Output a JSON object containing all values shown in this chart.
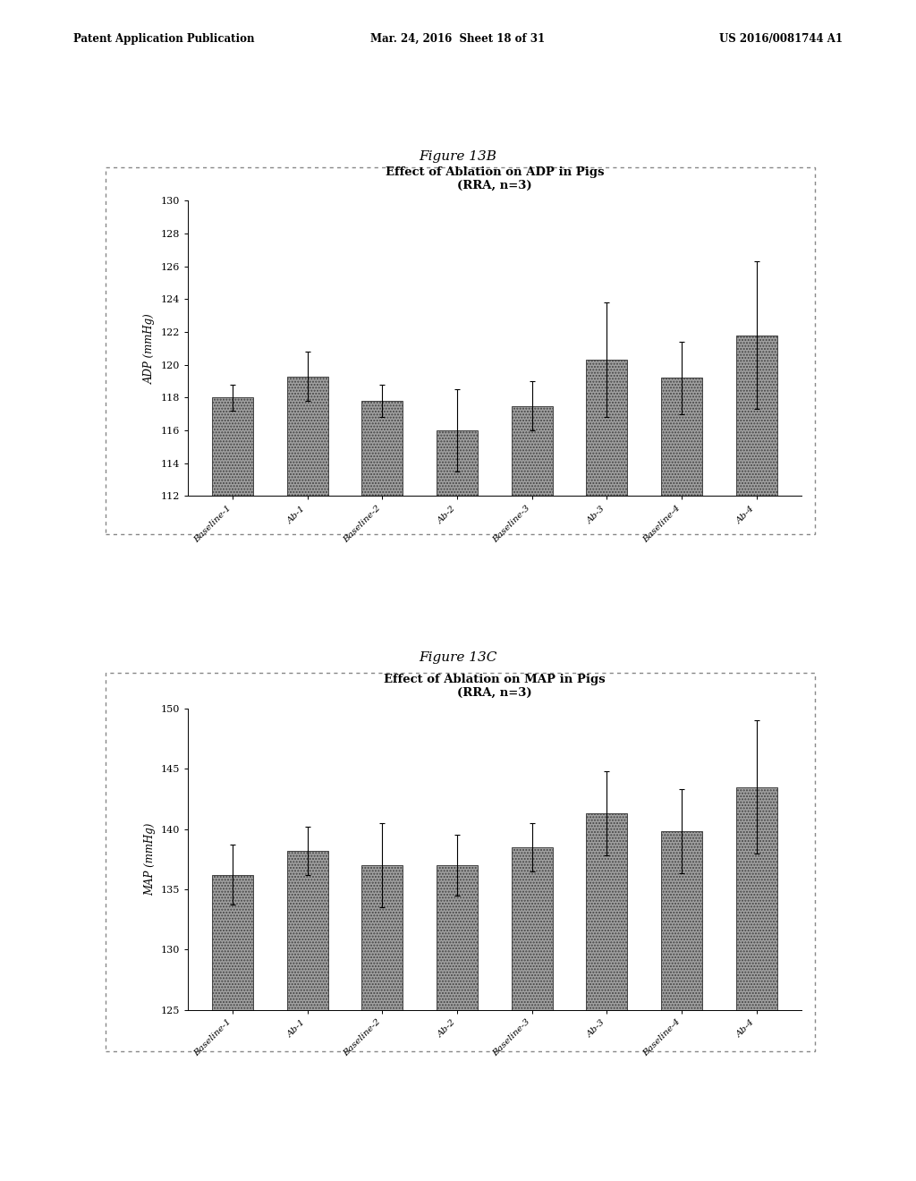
{
  "fig13b": {
    "title_line1": "Effect of Ablation on ADP in Pigs",
    "title_line2": "(RRA, n=3)",
    "ylabel": "ADP (mmHg)",
    "categories": [
      "Baseline-1",
      "Ab-1",
      "Baseline-2",
      "Ab-2",
      "Baseline-3",
      "Ab-3",
      "Baseline-4",
      "Ab-4"
    ],
    "values": [
      118.0,
      119.3,
      117.8,
      116.0,
      117.5,
      120.3,
      119.2,
      121.8
    ],
    "errors": [
      0.8,
      1.5,
      1.0,
      2.5,
      1.5,
      3.5,
      2.2,
      4.5
    ],
    "ylim": [
      112,
      130
    ],
    "yticks": [
      112,
      114,
      116,
      118,
      120,
      122,
      124,
      126,
      128,
      130
    ]
  },
  "fig13c": {
    "title_line1": "Effect of Ablation on MAP in Pigs",
    "title_line2": "(RRA, n=3)",
    "ylabel": "MAP (mmHg)",
    "categories": [
      "Baseline-1",
      "Ab-1",
      "Baseline-2",
      "Ab-2",
      "Baseline-3",
      "Ab-3",
      "Baseline-4",
      "Ab-4"
    ],
    "values": [
      136.2,
      138.2,
      137.0,
      137.0,
      138.5,
      141.3,
      139.8,
      143.5
    ],
    "errors": [
      2.5,
      2.0,
      3.5,
      2.5,
      2.0,
      3.5,
      3.5,
      5.5
    ],
    "ylim": [
      125,
      150
    ],
    "yticks": [
      125,
      130,
      135,
      140,
      145,
      150
    ]
  },
  "bar_color": "#a0a0a0",
  "bar_hatch": ".....",
  "bar_edge_color": "#444444",
  "background_color": "#ffffff",
  "figure_label_13b": "Figure 13B",
  "figure_label_13c": "Figure 13C",
  "header_left": "Patent Application Publication",
  "header_mid": "Mar. 24, 2016  Sheet 18 of 31",
  "header_right": "US 2016/0081744 A1"
}
